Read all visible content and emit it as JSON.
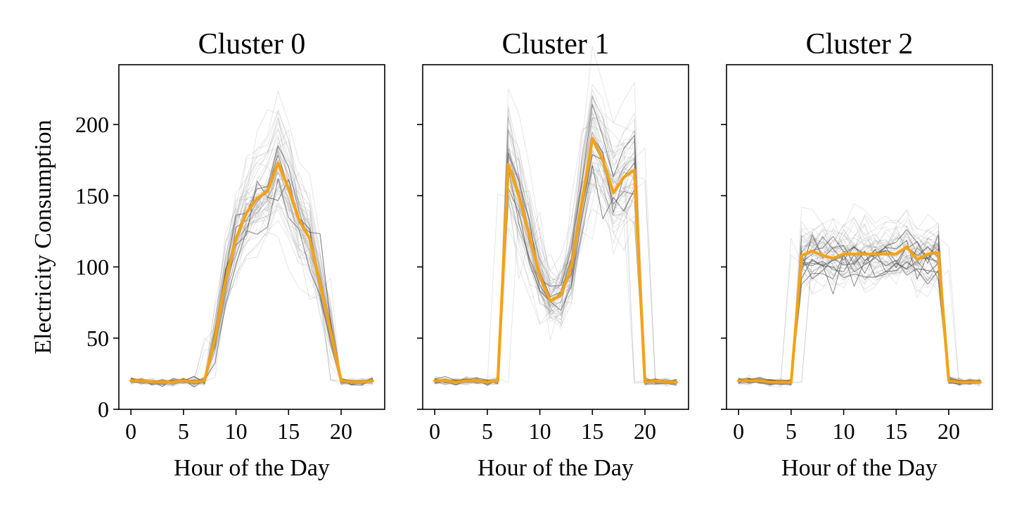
{
  "chart_data": [
    {
      "type": "line",
      "title": "Cluster 0",
      "xlabel": "Hour of the Day",
      "ylabel": "Electricity Consumption",
      "xlim": [
        -1.15,
        24.15
      ],
      "ylim": [
        0,
        242
      ],
      "xticks": [
        0,
        5,
        10,
        15,
        20
      ],
      "yticks": [
        0,
        50,
        100,
        150,
        200
      ],
      "ytick_labels_visible": true,
      "x": [
        0,
        1,
        2,
        3,
        4,
        5,
        6,
        7,
        8,
        9,
        10,
        11,
        12,
        13,
        14,
        15,
        16,
        17,
        18,
        19,
        20,
        21,
        22,
        23
      ],
      "series": [
        {
          "role": "centroid",
          "values": [
            20,
            20,
            19,
            19,
            19,
            20,
            19,
            20,
            50,
            90,
            120,
            138,
            148,
            153,
            173,
            155,
            133,
            120,
            88,
            55,
            20,
            19,
            19,
            20
          ]
        }
      ],
      "background_profiles": {
        "count": 60,
        "description_only": false
      }
    },
    {
      "type": "line",
      "title": "Cluster 1",
      "xlabel": "Hour of the Day",
      "ylabel": "",
      "xlim": [
        -1.15,
        24.15
      ],
      "ylim": [
        0,
        242
      ],
      "xticks": [
        0,
        5,
        10,
        15,
        20
      ],
      "yticks": [
        0,
        50,
        100,
        150,
        200
      ],
      "ytick_labels_visible": false,
      "x": [
        0,
        1,
        2,
        3,
        4,
        5,
        6,
        7,
        8,
        9,
        10,
        11,
        12,
        13,
        14,
        15,
        16,
        17,
        18,
        19,
        20,
        21,
        22,
        23
      ],
      "series": [
        {
          "role": "centroid",
          "values": [
            20,
            20,
            19,
            20,
            20,
            19,
            20,
            172,
            150,
            122,
            93,
            76,
            80,
            100,
            145,
            190,
            175,
            152,
            163,
            168,
            19,
            20,
            19,
            19
          ]
        }
      ],
      "background_profiles": {
        "count": 60
      }
    },
    {
      "type": "line",
      "title": "Cluster 2",
      "xlabel": "Hour of the Day",
      "ylabel": "",
      "xlim": [
        -1.15,
        24.15
      ],
      "ylim": [
        0,
        242
      ],
      "xticks": [
        0,
        5,
        10,
        15,
        20
      ],
      "yticks": [
        0,
        50,
        100,
        150,
        200
      ],
      "ytick_labels_visible": false,
      "x": [
        0,
        1,
        2,
        3,
        4,
        5,
        6,
        7,
        8,
        9,
        10,
        11,
        12,
        13,
        14,
        15,
        16,
        17,
        18,
        19,
        20,
        21,
        22,
        23
      ],
      "series": [
        {
          "role": "centroid",
          "values": [
            20,
            20,
            20,
            19,
            19,
            19,
            108,
            111,
            108,
            106,
            109,
            109,
            109,
            109,
            109,
            109,
            114,
            105,
            109,
            110,
            20,
            19,
            19,
            19
          ]
        }
      ],
      "background_profiles": {
        "count": 60
      }
    }
  ],
  "colors": {
    "centroid": "#f5a213",
    "profile": "#555555",
    "axes": "#000000"
  }
}
